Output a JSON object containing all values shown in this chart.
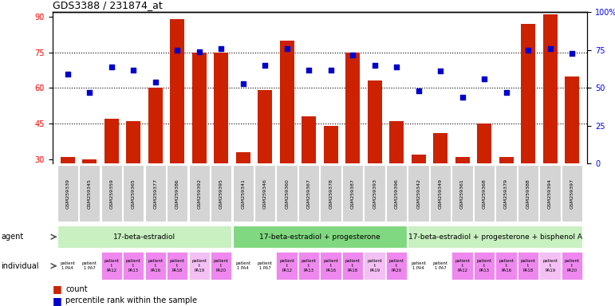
{
  "title": "GDS3388 / 231874_at",
  "samples": [
    "GSM259339",
    "GSM259345",
    "GSM259359",
    "GSM259365",
    "GSM259377",
    "GSM259386",
    "GSM259392",
    "GSM259395",
    "GSM259341",
    "GSM259346",
    "GSM259360",
    "GSM259367",
    "GSM259378",
    "GSM259387",
    "GSM259393",
    "GSM259396",
    "GSM259342",
    "GSM259349",
    "GSM259361",
    "GSM259368",
    "GSM259379",
    "GSM259388",
    "GSM259394",
    "GSM259397"
  ],
  "counts": [
    31,
    30,
    47,
    46,
    60,
    89,
    75,
    75,
    33,
    59,
    80,
    48,
    44,
    75,
    63,
    46,
    32,
    41,
    31,
    45,
    31,
    87,
    91,
    65
  ],
  "percentiles": [
    59,
    47,
    64,
    62,
    54,
    75,
    74,
    76,
    53,
    65,
    76,
    62,
    62,
    72,
    65,
    64,
    48,
    61,
    44,
    56,
    47,
    75,
    76,
    73
  ],
  "agents": [
    {
      "label": "17-beta-estradiol",
      "start": 0,
      "end": 8,
      "color": "#c8f0c0"
    },
    {
      "label": "17-beta-estradiol + progesterone",
      "start": 8,
      "end": 16,
      "color": "#80d880"
    },
    {
      "label": "17-beta-estradiol + progesterone + bisphenol A",
      "start": 16,
      "end": 24,
      "color": "#c8f0c0"
    }
  ],
  "bar_color": "#cc2200",
  "dot_color": "#0000cc",
  "ylim_left": [
    28,
    92
  ],
  "ylim_right": [
    0,
    100
  ],
  "yticks_left": [
    30,
    45,
    60,
    75,
    90
  ],
  "yticks_right": [
    0,
    25,
    50,
    75,
    100
  ],
  "ytick_right_labels": [
    "0",
    "25",
    "50",
    "75",
    "100%"
  ],
  "hlines": [
    45,
    60,
    75
  ],
  "bar_width": 0.65,
  "indiv_labels_per8": [
    "patient\n1 PA4",
    "patient\n1 PA7",
    "patient\nt\nPA12",
    "patient\nt\nPA13",
    "patient\nt\nPA16",
    "patient\nt\nPA18",
    "patient\nt\nPA19",
    "patient\nt\nPA20"
  ],
  "indiv_colors_per8": [
    "#ffffff",
    "#ffffff",
    "#ee88ee",
    "#ee88ee",
    "#ee88ee",
    "#ee88ee",
    "#f4c0f4",
    "#ee88ee"
  ]
}
